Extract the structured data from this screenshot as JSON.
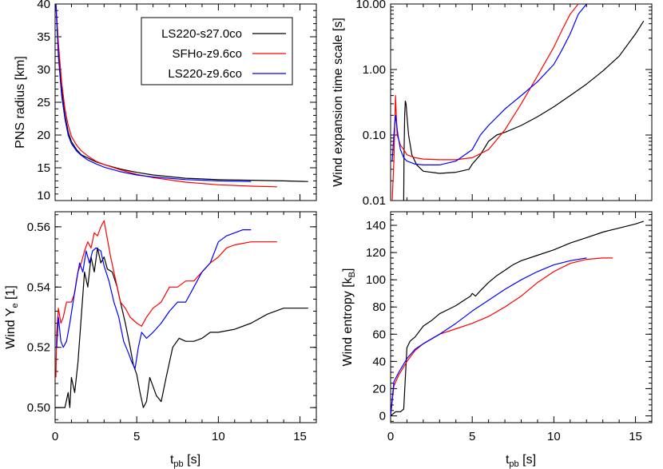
{
  "chart_data": [
    {
      "type": "line",
      "ylabel": "PNS radius [km]",
      "xlabel": "",
      "xlim": [
        0,
        16
      ],
      "ylim": [
        10,
        40
      ],
      "xticks": [
        0,
        5,
        10,
        15
      ],
      "xtick_labels": [
        "",
        "",
        "",
        ""
      ],
      "yticks": [
        15,
        20,
        25,
        30,
        35,
        40
      ],
      "ytick_labels": [
        "15",
        "20",
        "25",
        "30",
        "35",
        "40"
      ],
      "extra_ytick_labels": [
        {
          "value": 10.8,
          "label": "10"
        }
      ],
      "legend": {
        "position": "top-right",
        "entries": [
          "LS220-s27.0co",
          "SFHo-z9.6co",
          "LS220-z9.6co"
        ]
      },
      "series": [
        {
          "name": "LS220-s27.0co",
          "color": "#000000",
          "x": [
            0.05,
            0.2,
            0.4,
            0.6,
            0.8,
            1.0,
            1.3,
            1.6,
            2.0,
            2.5,
            3.0,
            4.0,
            5.0,
            6.0,
            8.0,
            10.0,
            12.0,
            14.0,
            15.5
          ],
          "y": [
            40,
            33,
            27,
            23,
            20.5,
            19,
            17.8,
            17,
            16.5,
            15.9,
            15.5,
            14.8,
            14.3,
            13.9,
            13.4,
            13.2,
            13.1,
            13.0,
            12.9
          ]
        },
        {
          "name": "SFHo-z9.6co",
          "color": "#ff0000",
          "x": [
            0.05,
            0.2,
            0.4,
            0.6,
            0.8,
            1.0,
            1.3,
            1.6,
            2.0,
            2.5,
            3.0,
            4.0,
            5.0,
            6.0,
            8.0,
            10.0,
            12.0,
            13.6
          ],
          "y": [
            40,
            34,
            28,
            24,
            21.5,
            19.8,
            18.5,
            17.6,
            16.8,
            16.0,
            15.5,
            14.7,
            14.0,
            13.5,
            12.8,
            12.4,
            12.2,
            12.1
          ]
        },
        {
          "name": "LS220-z9.6co",
          "color": "#0000ff",
          "x": [
            0.05,
            0.2,
            0.4,
            0.6,
            0.8,
            1.0,
            1.3,
            1.6,
            2.0,
            2.5,
            3.0,
            4.0,
            5.0,
            6.0,
            8.0,
            10.0,
            12.0
          ],
          "y": [
            40,
            32,
            26,
            22.5,
            20,
            18.7,
            17.6,
            16.9,
            16.2,
            15.6,
            15.1,
            14.4,
            13.9,
            13.6,
            13.2,
            13.0,
            12.9
          ]
        }
      ]
    },
    {
      "type": "line",
      "ylabel": "Wind expansion time scale [s]",
      "xlabel": "",
      "yscale": "log",
      "xlim": [
        0,
        16
      ],
      "ylim": [
        0.01,
        10
      ],
      "xticks": [
        0,
        5,
        10,
        15
      ],
      "xtick_labels": [
        "",
        "",
        "",
        ""
      ],
      "yticks": [
        0.01,
        0.1,
        1,
        10
      ],
      "ytick_labels": [
        "0.01",
        "0.10",
        "1.00",
        "10.00"
      ],
      "series": [
        {
          "name": "LS220-s27.0co",
          "color": "#000000",
          "x": [
            0.8,
            0.82,
            0.86,
            0.9,
            0.95,
            1.0,
            1.1,
            1.3,
            1.6,
            2.0,
            3.0,
            4.0,
            4.8,
            5.0,
            5.5,
            6.0,
            6.5,
            7.0,
            8.0,
            9.0,
            10.0,
            11.0,
            12.0,
            13.0,
            14.0,
            15.0,
            15.5
          ],
          "y": [
            0.01,
            0.05,
            0.2,
            0.33,
            0.3,
            0.2,
            0.1,
            0.05,
            0.035,
            0.028,
            0.026,
            0.027,
            0.03,
            0.036,
            0.05,
            0.08,
            0.1,
            0.11,
            0.14,
            0.19,
            0.27,
            0.4,
            0.6,
            0.95,
            1.6,
            3.5,
            5.5
          ]
        },
        {
          "name": "SFHo-z9.6co",
          "color": "#ff0000",
          "x": [
            0.1,
            0.2,
            0.3,
            0.4,
            0.6,
            0.8,
            1.0,
            1.5,
            2.0,
            3.0,
            4.0,
            5.0,
            6.0,
            7.0,
            8.0,
            9.0,
            10.0,
            10.5,
            11.0,
            11.5
          ],
          "y": [
            0.01,
            0.04,
            0.4,
            0.1,
            0.07,
            0.06,
            0.05,
            0.045,
            0.043,
            0.042,
            0.042,
            0.045,
            0.06,
            0.12,
            0.3,
            0.8,
            2.2,
            4,
            7,
            10
          ]
        },
        {
          "name": "LS220-z9.6co",
          "color": "#0000ff",
          "x": [
            0.1,
            0.2,
            0.3,
            0.45,
            0.6,
            0.8,
            1.0,
            1.5,
            2.0,
            3.0,
            4.0,
            5.0,
            5.5,
            6.0,
            7.0,
            8.0,
            9.0,
            10.0,
            10.5,
            11.0,
            11.5,
            12.0
          ],
          "y": [
            0.04,
            0.1,
            0.2,
            0.1,
            0.06,
            0.045,
            0.04,
            0.036,
            0.035,
            0.035,
            0.04,
            0.06,
            0.1,
            0.14,
            0.25,
            0.4,
            0.65,
            1.2,
            2,
            3.5,
            7,
            10
          ]
        }
      ]
    },
    {
      "type": "line",
      "ylabel_main": "Wind Y",
      "ylabel_sub": "e",
      "ylabel_unit": " [1]",
      "xlabel_main": "t",
      "xlabel_sub": "pb",
      "xlabel_unit": " [s]",
      "xlim": [
        0,
        16
      ],
      "ylim": [
        0.495,
        0.565
      ],
      "xticks": [
        0,
        5,
        10,
        15
      ],
      "xtick_labels": [
        "0",
        "5",
        "10",
        "15"
      ],
      "yticks": [
        0.5,
        0.52,
        0.54,
        0.56
      ],
      "ytick_labels": [
        "0.50",
        "0.52",
        "0.54",
        "0.56"
      ],
      "series": [
        {
          "name": "LS220-s27.0co",
          "color": "#000000",
          "x": [
            0.0,
            0.2,
            0.4,
            0.6,
            0.8,
            0.9,
            1.0,
            1.2,
            1.4,
            1.6,
            1.8,
            2.0,
            2.2,
            2.4,
            2.6,
            2.8,
            3.0,
            3.2,
            3.5,
            3.8,
            4.0,
            4.3,
            4.6,
            4.8,
            5.0,
            5.2,
            5.4,
            5.6,
            5.8,
            6.0,
            6.2,
            6.5,
            6.8,
            7.2,
            7.6,
            8.0,
            8.5,
            9.0,
            9.5,
            10.0,
            11.0,
            12.0,
            13.0,
            14.0,
            14.5,
            15.0,
            15.5
          ],
          "y": [
            0.5,
            0.5,
            0.5,
            0.5,
            0.505,
            0.5,
            0.51,
            0.505,
            0.515,
            0.53,
            0.545,
            0.54,
            0.55,
            0.545,
            0.553,
            0.548,
            0.55,
            0.546,
            0.545,
            0.54,
            0.535,
            0.528,
            0.52,
            0.514,
            0.511,
            0.505,
            0.5,
            0.502,
            0.51,
            0.507,
            0.504,
            0.502,
            0.51,
            0.52,
            0.523,
            0.522,
            0.522,
            0.523,
            0.525,
            0.525,
            0.526,
            0.528,
            0.531,
            0.533,
            0.533,
            0.533,
            0.533
          ]
        },
        {
          "name": "SFHo-z9.6co",
          "color": "#ff0000",
          "x": [
            0.05,
            0.1,
            0.2,
            0.35,
            0.5,
            0.7,
            1.0,
            1.2,
            1.4,
            1.6,
            1.8,
            2.0,
            2.2,
            2.4,
            2.6,
            2.8,
            3.0,
            3.2,
            3.4,
            3.6,
            3.8,
            4.0,
            4.3,
            4.6,
            5.0,
            5.3,
            5.6,
            6.0,
            6.5,
            7.0,
            7.5,
            8.0,
            8.5,
            9.0,
            9.5,
            10.0,
            10.5,
            11.0,
            12.0,
            13.0,
            13.6
          ],
          "y": [
            0.51,
            0.525,
            0.533,
            0.528,
            0.53,
            0.535,
            0.535,
            0.538,
            0.545,
            0.548,
            0.552,
            0.555,
            0.553,
            0.558,
            0.557,
            0.56,
            0.562,
            0.556,
            0.55,
            0.545,
            0.54,
            0.535,
            0.533,
            0.53,
            0.528,
            0.527,
            0.53,
            0.533,
            0.535,
            0.54,
            0.54,
            0.542,
            0.542,
            0.545,
            0.548,
            0.55,
            0.553,
            0.554,
            0.555,
            0.555,
            0.555
          ]
        },
        {
          "name": "LS220-z9.6co",
          "color": "#0000ff",
          "x": [
            0.05,
            0.1,
            0.2,
            0.35,
            0.5,
            0.7,
            0.9,
            1.1,
            1.3,
            1.5,
            1.7,
            1.9,
            2.1,
            2.3,
            2.5,
            2.8,
            3.0,
            3.3,
            3.6,
            3.9,
            4.2,
            4.5,
            4.7,
            4.9,
            5.1,
            5.3,
            5.6,
            6.0,
            6.5,
            7.0,
            7.5,
            8.0,
            8.5,
            9.0,
            9.5,
            10.0,
            10.5,
            11.0,
            11.5,
            12.0
          ],
          "y": [
            0.52,
            0.52,
            0.53,
            0.522,
            0.52,
            0.522,
            0.528,
            0.535,
            0.542,
            0.548,
            0.545,
            0.552,
            0.548,
            0.552,
            0.553,
            0.552,
            0.547,
            0.542,
            0.535,
            0.53,
            0.522,
            0.518,
            0.515,
            0.513,
            0.52,
            0.525,
            0.523,
            0.525,
            0.528,
            0.532,
            0.535,
            0.535,
            0.54,
            0.545,
            0.548,
            0.555,
            0.557,
            0.558,
            0.559,
            0.559
          ]
        }
      ]
    },
    {
      "type": "line",
      "ylabel_main": "Wind entropy [k",
      "ylabel_sub": "B",
      "ylabel_unit": "]",
      "xlabel_main": "t",
      "xlabel_sub": "pb",
      "xlabel_unit": " [s]",
      "xlim": [
        0,
        16
      ],
      "ylim": [
        -5,
        150
      ],
      "xticks": [
        0,
        5,
        10,
        15
      ],
      "xtick_labels": [
        "0",
        "5",
        "10",
        "15"
      ],
      "yticks": [
        0,
        20,
        40,
        60,
        80,
        100,
        120,
        140
      ],
      "ytick_labels": [
        "0",
        "20",
        "40",
        "60",
        "80",
        "100",
        "120",
        "140"
      ],
      "series": [
        {
          "name": "LS220-s27.0co",
          "color": "#000000",
          "x": [
            0.0,
            0.3,
            0.6,
            0.8,
            1.0,
            1.2,
            1.5,
            2.0,
            2.5,
            3.0,
            3.5,
            4.0,
            4.5,
            4.9,
            5.0,
            5.2,
            5.5,
            6.0,
            6.5,
            7.0,
            7.5,
            8.0,
            9.0,
            10.0,
            11.0,
            12.0,
            13.0,
            14.0,
            15.0,
            15.5
          ],
          "y": [
            0,
            3,
            3,
            5,
            50,
            55,
            58,
            66,
            70,
            75,
            78,
            81,
            85,
            88,
            90,
            88,
            92,
            98,
            103,
            107,
            111,
            114,
            118,
            122,
            127,
            131,
            135,
            138,
            141,
            143
          ]
        },
        {
          "name": "SFHo-z9.6co",
          "color": "#ff0000",
          "x": [
            0.0,
            0.2,
            0.5,
            1.0,
            1.5,
            2.0,
            3.0,
            4.0,
            5.0,
            6.0,
            7.0,
            8.0,
            9.0,
            10.0,
            11.0,
            12.0,
            13.0,
            13.6
          ],
          "y": [
            0,
            22,
            30,
            40,
            48,
            53,
            60,
            64,
            68,
            73,
            80,
            88,
            98,
            106,
            112,
            115,
            116,
            116
          ]
        },
        {
          "name": "LS220-z9.6co",
          "color": "#0000ff",
          "x": [
            0.0,
            0.2,
            0.5,
            1.0,
            1.5,
            2.0,
            3.0,
            4.0,
            5.0,
            6.0,
            7.0,
            8.0,
            9.0,
            10.0,
            11.0,
            12.0
          ],
          "y": [
            0,
            25,
            32,
            42,
            49,
            53,
            60,
            68,
            77,
            85,
            93,
            100,
            106,
            111,
            114,
            116
          ]
        }
      ]
    }
  ]
}
